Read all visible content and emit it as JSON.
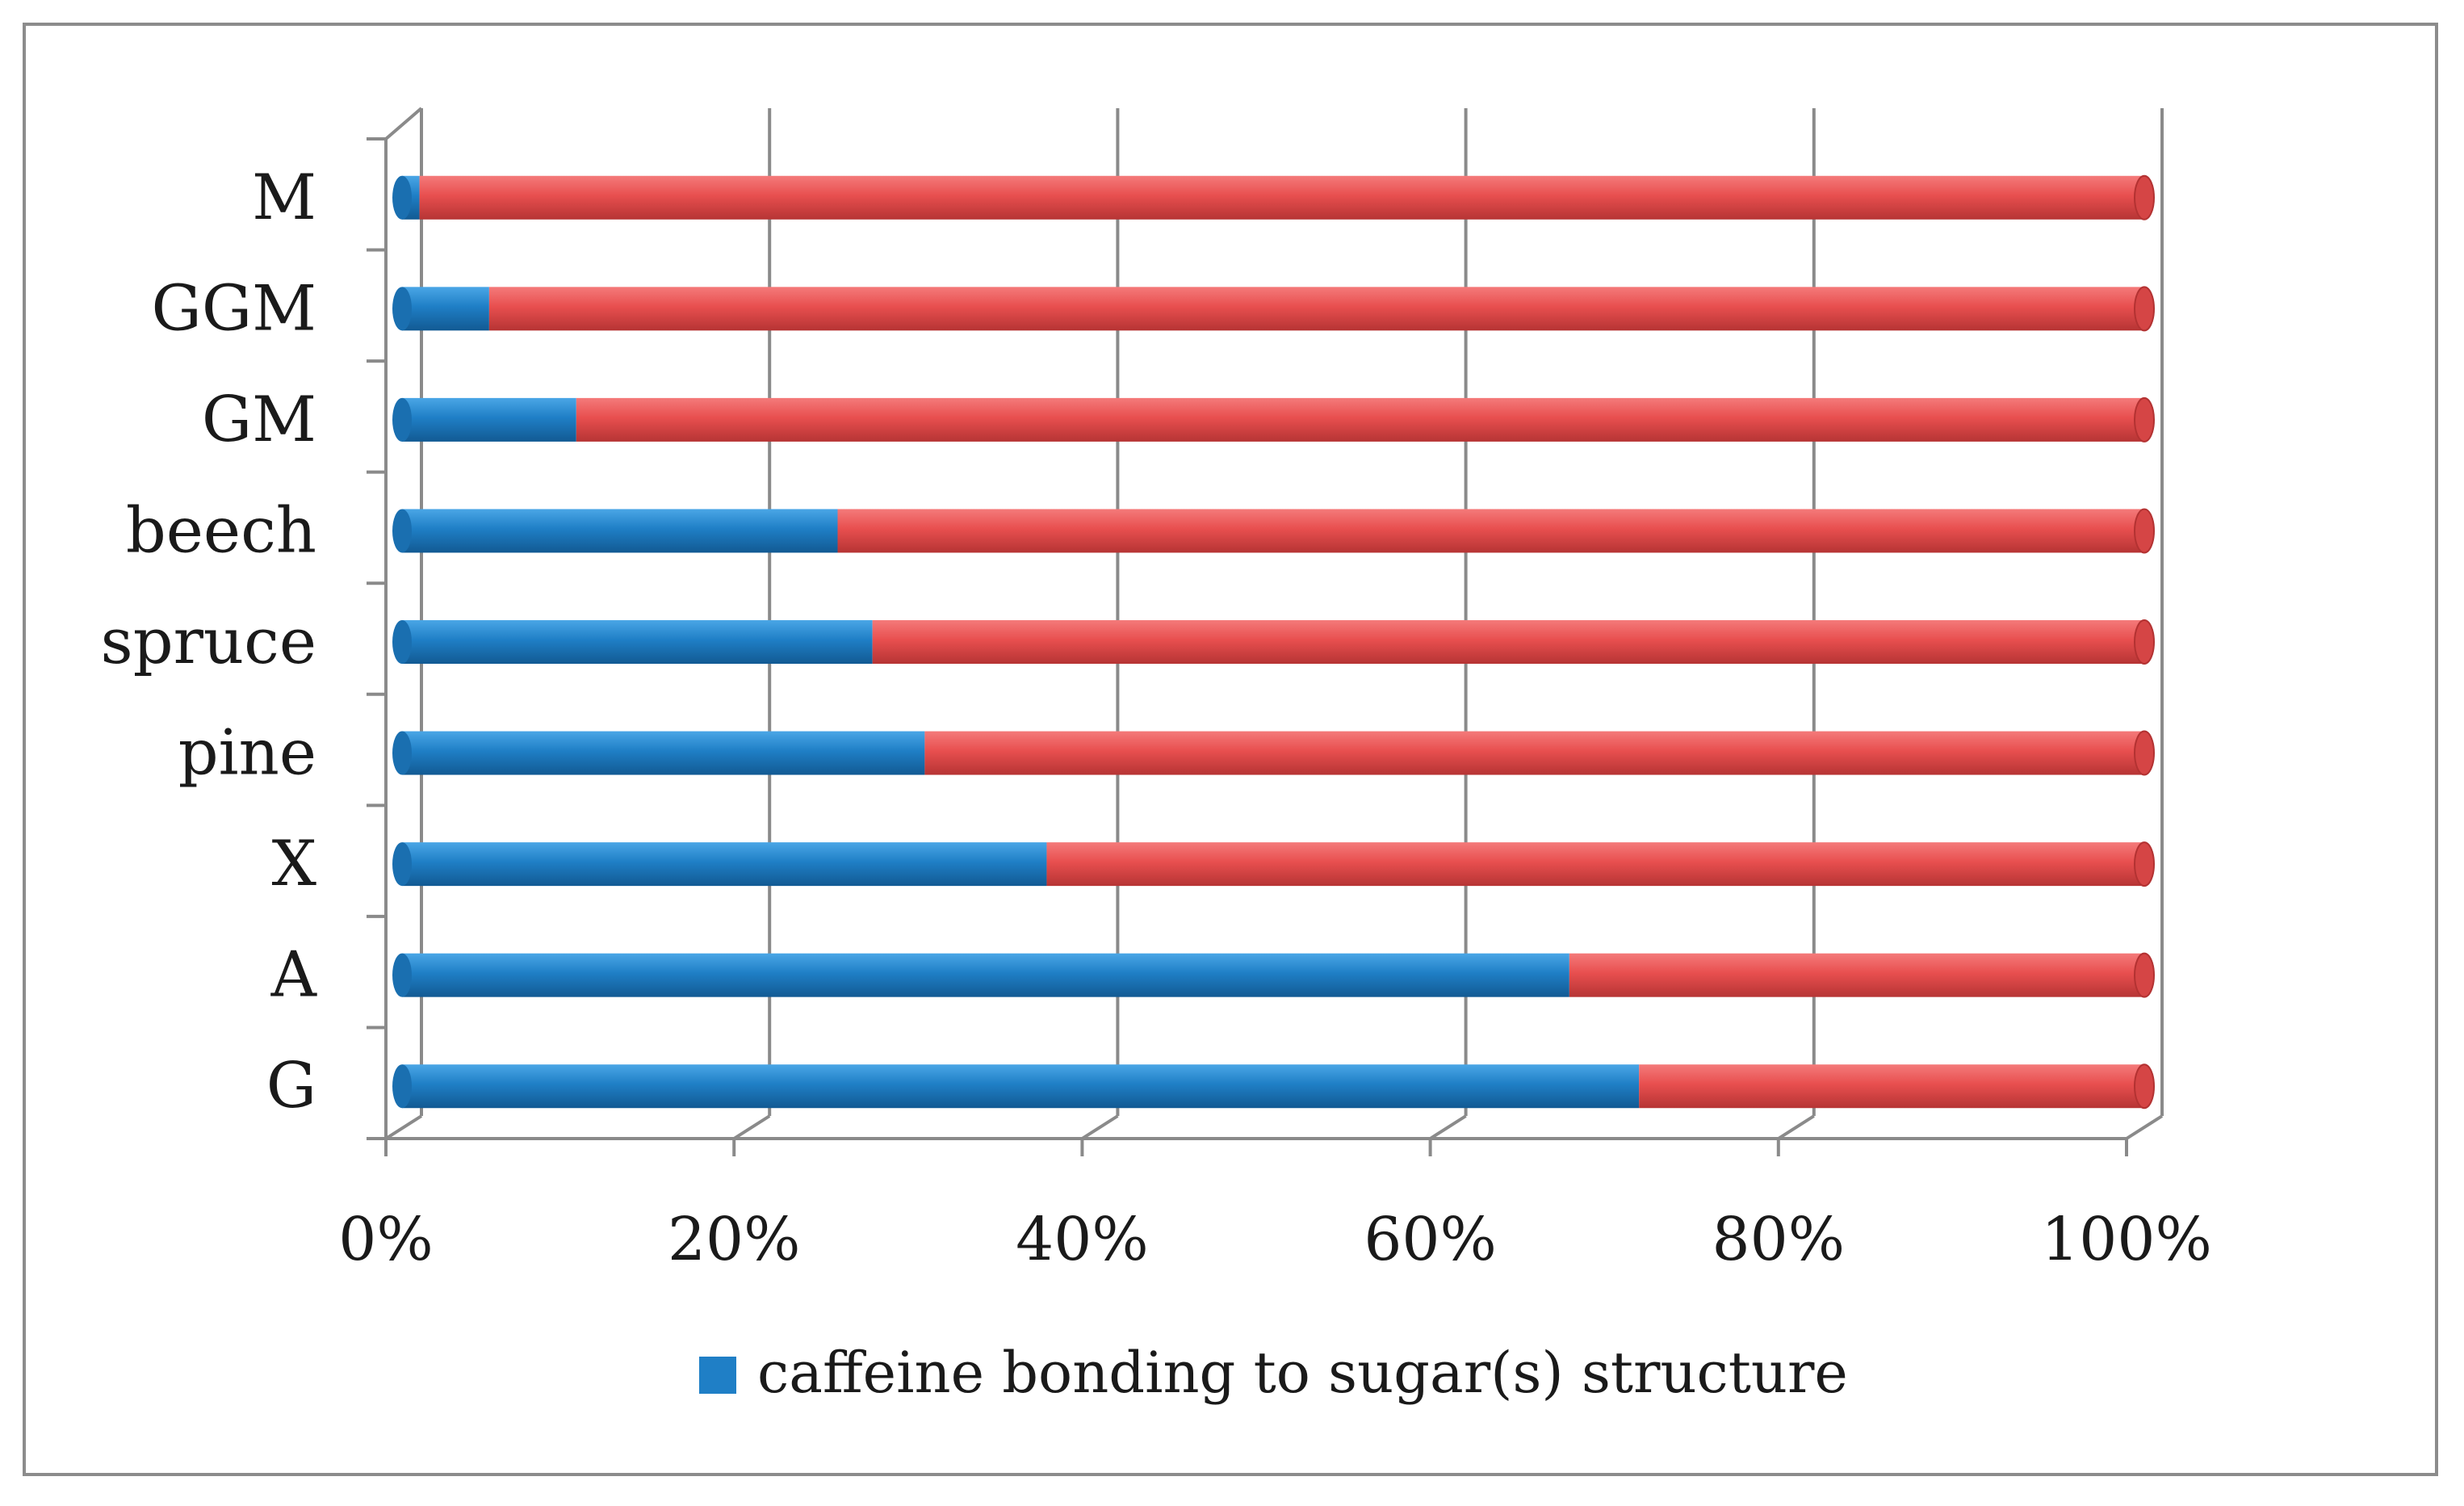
{
  "chart_data": {
    "type": "bar",
    "orientation": "horizontal",
    "stacked": "percent",
    "style": "3d-cylinder",
    "title": "",
    "xlabel": "",
    "ylabel": "",
    "xlim": [
      0,
      100
    ],
    "x_ticks": [
      "0%",
      "20%",
      "40%",
      "60%",
      "80%",
      "100%"
    ],
    "grid": true,
    "categories": [
      "M",
      "GGM",
      "GM",
      "beech",
      "spruce",
      "pine",
      "X",
      "A",
      "G"
    ],
    "series": [
      {
        "name": "caffeine bonding to sugar(s) structure",
        "color": "#1f7fc6",
        "values": [
          1,
          5,
          10,
          25,
          27,
          30,
          37,
          67,
          71
        ]
      },
      {
        "name": "",
        "color": "#e84f4f",
        "values": [
          99,
          95,
          90,
          75,
          73,
          70,
          63,
          33,
          29
        ]
      }
    ],
    "legend": {
      "position": "bottom",
      "entries": [
        "caffeine bonding to sugar(s) structure"
      ]
    }
  }
}
